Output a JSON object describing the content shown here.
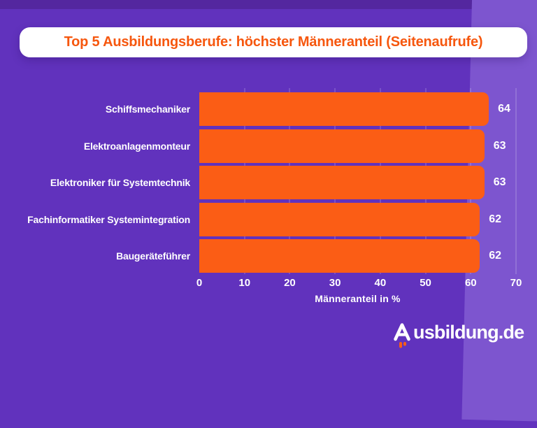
{
  "title": "Top 5 Ausbildungsberufe: höchster Männeranteil (Seitenaufrufe)",
  "chart_data": {
    "type": "bar",
    "orientation": "horizontal",
    "title": "Top 5 Ausbildungsberufe: höchster Männeranteil (Seitenaufrufe)",
    "categories": [
      "Schiffsmechaniker",
      "Elektroanlagenmonteur",
      "Elektroniker für Systemtechnik",
      "Fachinformatiker Systemintegration",
      "Baugeräteführer"
    ],
    "values": [
      64,
      63,
      63,
      62,
      62
    ],
    "value_labels": [
      "64",
      "63",
      "63",
      "62",
      "62"
    ],
    "xlabel": "Männeranteil in %",
    "x_ticks": [
      0,
      10,
      20,
      30,
      40,
      50,
      60,
      70
    ],
    "xlim": [
      0,
      70
    ],
    "grid": true,
    "legend": "none"
  },
  "branding": {
    "logo_text": "Ausbildung.de",
    "logo_suffix": "usbildung.de",
    "logo_icon": "rocket-a-icon"
  },
  "colors": {
    "background": "#6132BD",
    "background_top_strip": "#54279F",
    "background_accent": "#7D55CF",
    "bar": "#FB5D15",
    "title_text": "#F6570E",
    "card": "#FFFFFF",
    "text": "#FFFFFF",
    "gridline": "rgba(255,255,255,0.16)"
  }
}
